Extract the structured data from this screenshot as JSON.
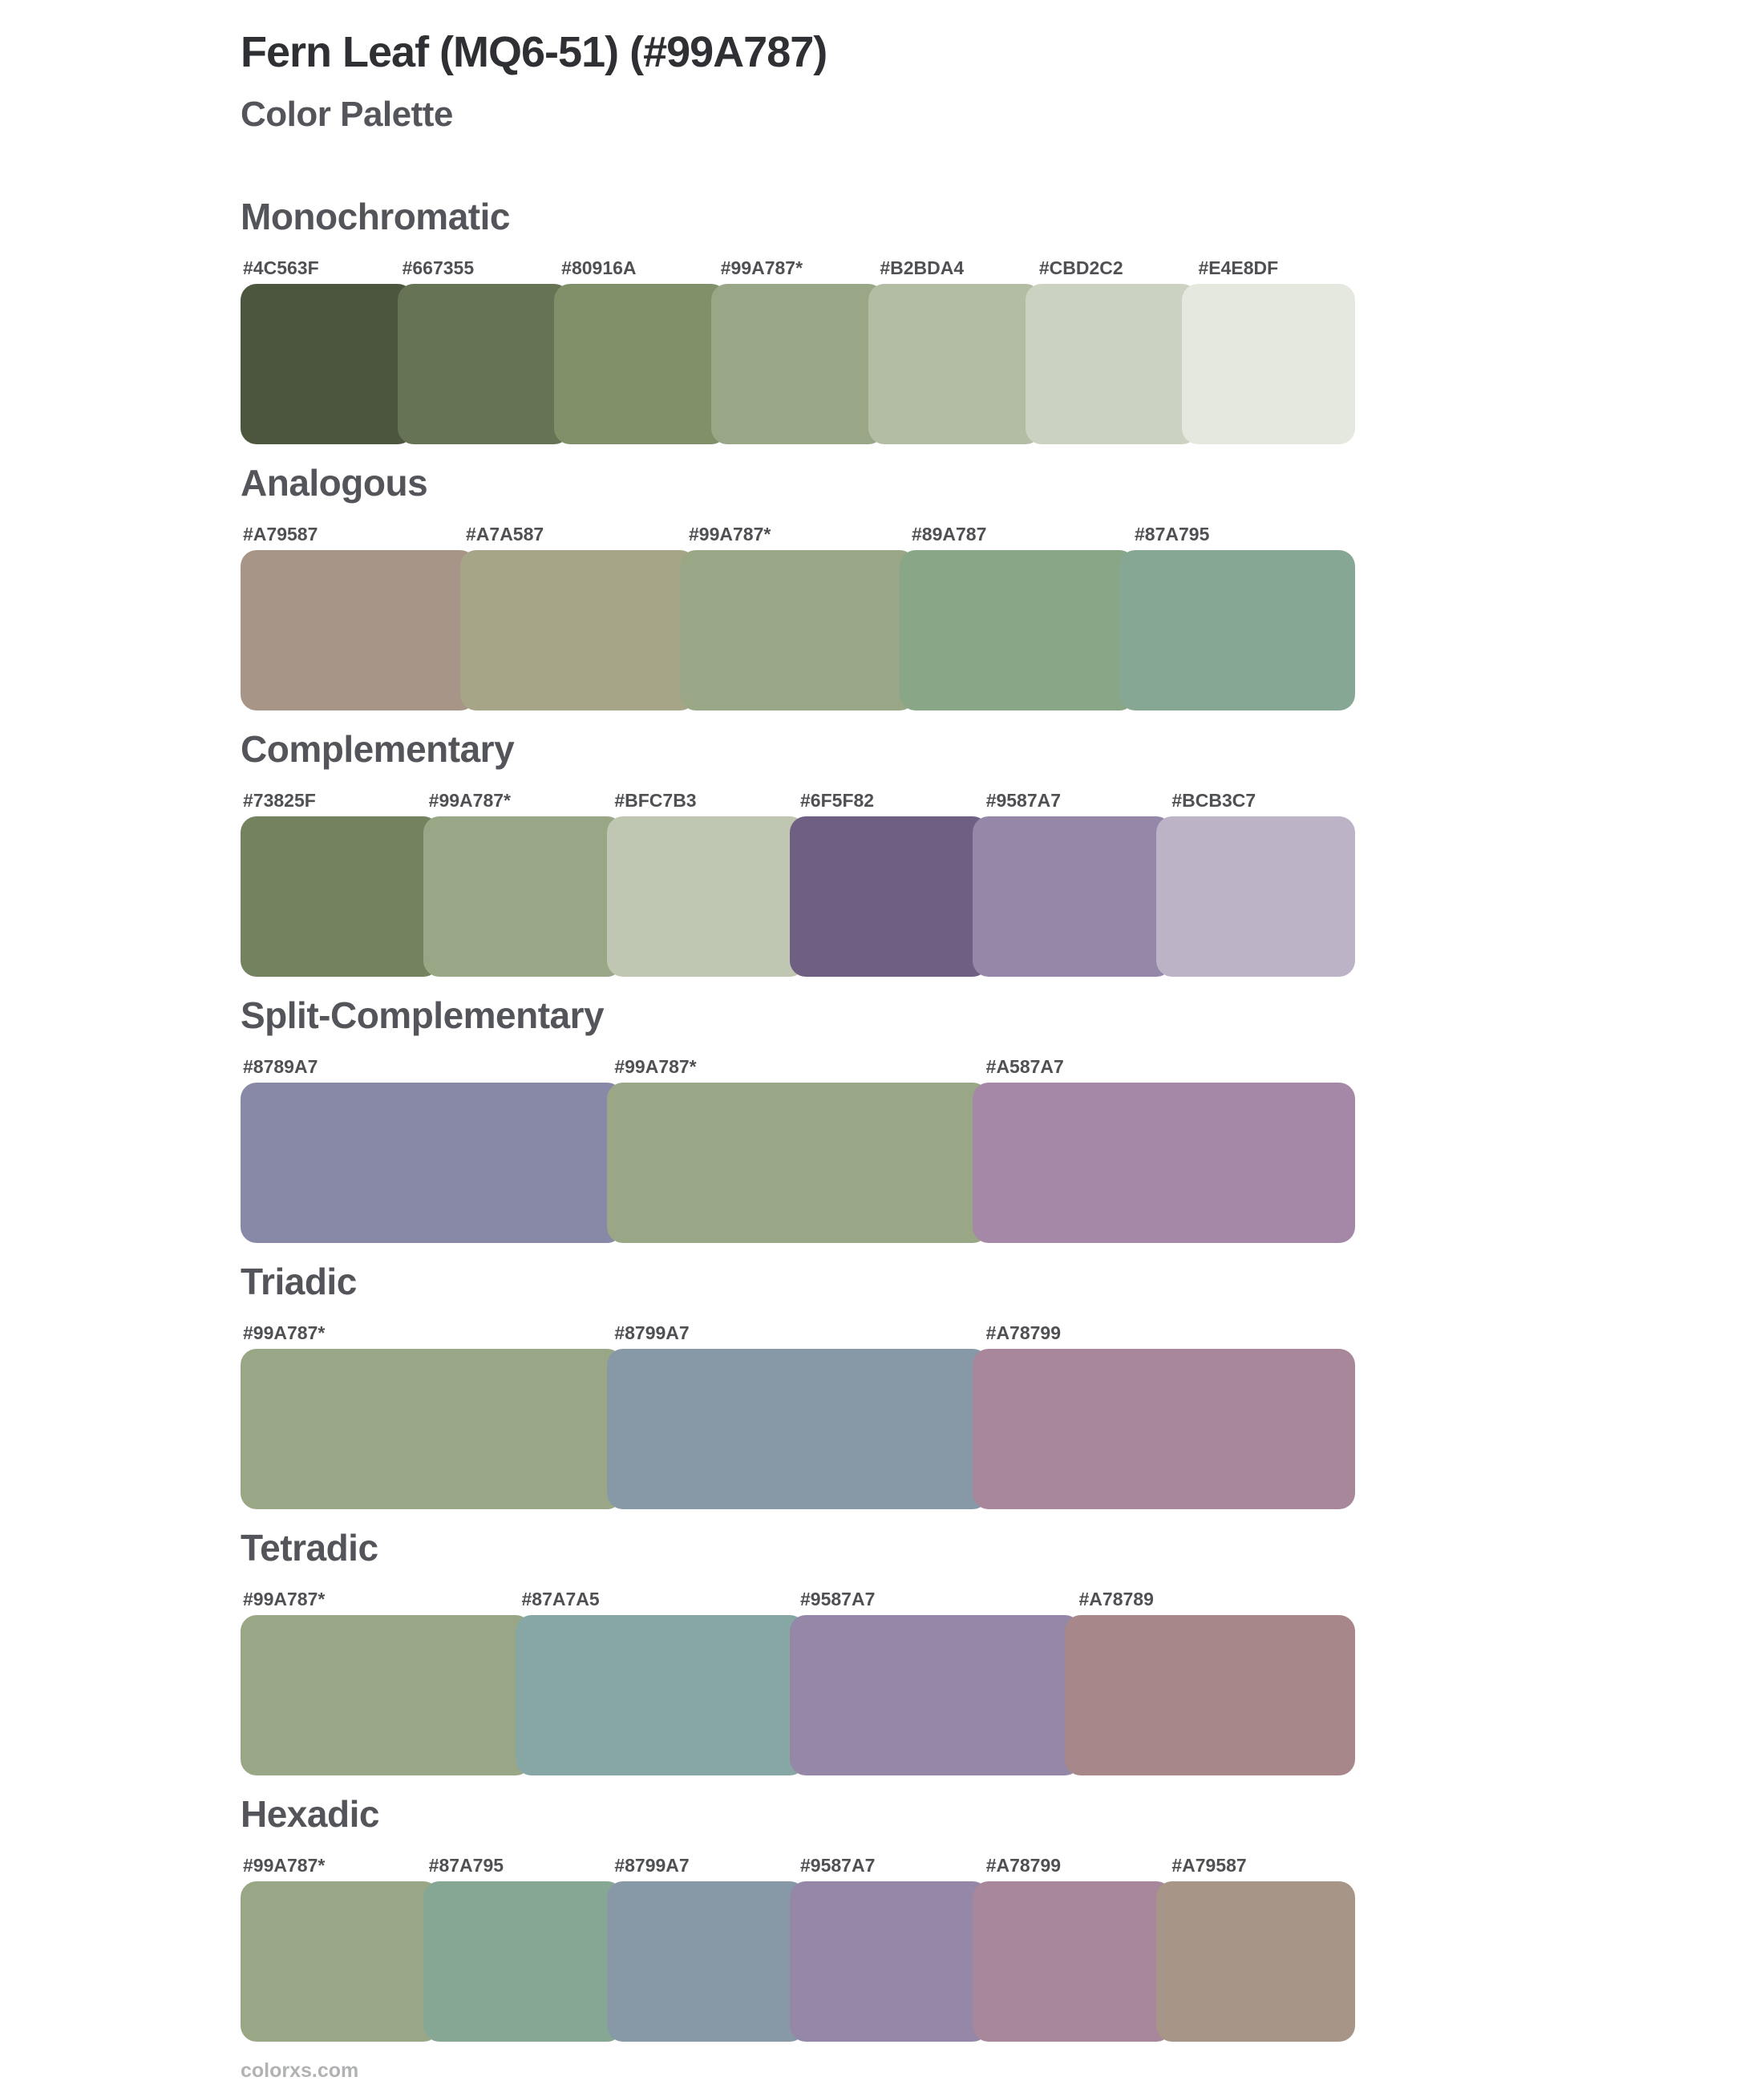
{
  "page": {
    "title": "Fern Leaf (MQ6-51) (#99A787)",
    "subtitle": "Color Palette",
    "base_color": "#99A787",
    "footer": "colorxs.com"
  },
  "sections": [
    {
      "name": "Monochromatic",
      "swatches": [
        {
          "label": "#4C563F",
          "color": "#4C563F"
        },
        {
          "label": "#667355",
          "color": "#667355"
        },
        {
          "label": "#80916A",
          "color": "#80916A"
        },
        {
          "label": "#99A787*",
          "color": "#99A787"
        },
        {
          "label": "#B2BDA4",
          "color": "#B2BDA4"
        },
        {
          "label": "#CBD2C2",
          "color": "#CBD2C2"
        },
        {
          "label": "#E4E8DF",
          "color": "#E4E8DF"
        }
      ]
    },
    {
      "name": "Analogous",
      "swatches": [
        {
          "label": "#A79587",
          "color": "#A79587"
        },
        {
          "label": "#A7A587",
          "color": "#A7A587"
        },
        {
          "label": "#99A787*",
          "color": "#99A787"
        },
        {
          "label": "#89A787",
          "color": "#89A787"
        },
        {
          "label": "#87A795",
          "color": "#87A795"
        }
      ]
    },
    {
      "name": "Complementary",
      "swatches": [
        {
          "label": "#73825F",
          "color": "#73825F"
        },
        {
          "label": "#99A787*",
          "color": "#99A787"
        },
        {
          "label": "#BFC7B3",
          "color": "#BFC7B3"
        },
        {
          "label": "#6F5F82",
          "color": "#6F5F82"
        },
        {
          "label": "#9587A7",
          "color": "#9587A7"
        },
        {
          "label": "#BCB3C7",
          "color": "#BCB3C7"
        }
      ]
    },
    {
      "name": "Split-Complementary",
      "swatches": [
        {
          "label": "#8789A7",
          "color": "#8789A7"
        },
        {
          "label": "#99A787*",
          "color": "#99A787"
        },
        {
          "label": "#A587A7",
          "color": "#A587A7"
        }
      ]
    },
    {
      "name": "Triadic",
      "swatches": [
        {
          "label": "#99A787*",
          "color": "#99A787"
        },
        {
          "label": "#8799A7",
          "color": "#8799A7"
        },
        {
          "label": "#A78799",
          "color": "#A78799"
        }
      ]
    },
    {
      "name": "Tetradic",
      "swatches": [
        {
          "label": "#99A787*",
          "color": "#99A787"
        },
        {
          "label": "#87A7A5",
          "color": "#87A7A5"
        },
        {
          "label": "#9587A7",
          "color": "#9587A7"
        },
        {
          "label": "#A78789",
          "color": "#A78789"
        }
      ]
    },
    {
      "name": "Hexadic",
      "swatches": [
        {
          "label": "#99A787*",
          "color": "#99A787"
        },
        {
          "label": "#87A795",
          "color": "#87A795"
        },
        {
          "label": "#8799A7",
          "color": "#8799A7"
        },
        {
          "label": "#9587A7",
          "color": "#9587A7"
        },
        {
          "label": "#A78799",
          "color": "#A78799"
        },
        {
          "label": "#A79587",
          "color": "#A79587"
        }
      ]
    }
  ]
}
